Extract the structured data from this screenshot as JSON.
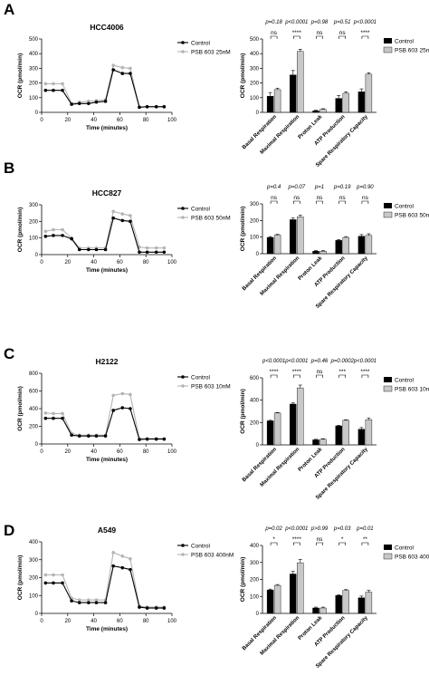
{
  "colors": {
    "control": "#000000",
    "treated": "#b4b4b4",
    "treated_bar": "#c8c8c8"
  },
  "chart_data": [
    {
      "panel": "A",
      "type": "line",
      "title": "HCC4006",
      "xlabel": "Time (minutes)",
      "ylabel": "OCR (pmol/min)",
      "xlim": [
        0,
        100
      ],
      "ylim": [
        0,
        500
      ],
      "xticks": [
        0,
        20,
        40,
        60,
        80,
        100
      ],
      "yticks": [
        0,
        100,
        200,
        300,
        400,
        500
      ],
      "x": [
        3,
        9,
        16,
        23,
        29,
        36,
        42,
        49,
        55,
        62,
        68,
        75,
        81,
        88,
        94
      ],
      "series": [
        {
          "name": "Control",
          "values": [
            150,
            150,
            150,
            55,
            60,
            60,
            70,
            75,
            290,
            265,
            265,
            35,
            38,
            38,
            38
          ]
        },
        {
          "name": "PSB 603 25nM",
          "values": [
            195,
            195,
            195,
            60,
            70,
            75,
            80,
            85,
            320,
            305,
            300,
            35,
            40,
            40,
            40
          ]
        }
      ]
    },
    {
      "panel": "A",
      "type": "bar",
      "ylabel": "OCR (pmol/min)",
      "ylim": [
        0,
        500
      ],
      "yticks": [
        0,
        100,
        200,
        300,
        400,
        500
      ],
      "categories": [
        "Basal Respiration",
        "Maximal Respiration",
        "Proton Leak",
        "ATP Production",
        "Spare Respiratory Capacity"
      ],
      "series": [
        {
          "name": "Control",
          "values": [
            110,
            255,
            10,
            95,
            140
          ]
        },
        {
          "name": "PSB 603 25nM",
          "values": [
            155,
            415,
            20,
            130,
            260
          ]
        }
      ],
      "errors": [
        [
          25,
          30,
          5,
          20,
          20
        ],
        [
          10,
          15,
          5,
          10,
          10
        ]
      ],
      "pvalues": [
        "p=0.18",
        "p<0.0001",
        "p=0.98",
        "p=0.51",
        "p<0.0001"
      ],
      "significance": [
        "ns",
        "****",
        "ns",
        "ns",
        "****"
      ]
    },
    {
      "panel": "B",
      "type": "line",
      "title": "HCC827",
      "xlabel": "Time (minutes)",
      "ylabel": "OCR (pmol/min)",
      "xlim": [
        0,
        100
      ],
      "ylim": [
        0,
        300
      ],
      "xticks": [
        0,
        20,
        40,
        60,
        80,
        100
      ],
      "yticks": [
        0,
        100,
        200,
        300
      ],
      "x": [
        3,
        9,
        16,
        23,
        29,
        36,
        42,
        49,
        55,
        62,
        68,
        75,
        81,
        88,
        94
      ],
      "series": [
        {
          "name": "Control",
          "values": [
            110,
            115,
            115,
            95,
            30,
            30,
            30,
            30,
            220,
            205,
            200,
            15,
            15,
            15,
            15
          ]
        },
        {
          "name": "PSB 603 50nM",
          "values": [
            140,
            150,
            150,
            100,
            40,
            40,
            40,
            40,
            260,
            245,
            235,
            45,
            40,
            40,
            40
          ]
        }
      ]
    },
    {
      "panel": "B",
      "type": "bar",
      "ylabel": "OCR (pmol/min)",
      "ylim": [
        0,
        300
      ],
      "yticks": [
        0,
        100,
        200,
        300
      ],
      "categories": [
        "Basal Respiration",
        "Maximal Respiration",
        "Proton Leak",
        "ATP Production",
        "Spare Respiratory Capacity"
      ],
      "series": [
        {
          "name": "Control",
          "values": [
            98,
            205,
            15,
            80,
            105
          ]
        },
        {
          "name": "PSB 603 50nM",
          "values": [
            112,
            222,
            15,
            98,
            110
          ]
        }
      ],
      "errors": [
        [
          5,
          10,
          5,
          5,
          10
        ],
        [
          5,
          10,
          5,
          5,
          10
        ]
      ],
      "pvalues": [
        "p=0.4",
        "p=0.07",
        "p=1",
        "p=0.19",
        "p=0.90"
      ],
      "significance": [
        "ns",
        "ns",
        "ns",
        "ns",
        "ns"
      ]
    },
    {
      "panel": "C",
      "type": "line",
      "title": "H2122",
      "xlabel": "Time (minutes)",
      "ylabel": "OCR (pmol/min)",
      "xlim": [
        0,
        100
      ],
      "ylim": [
        0,
        800
      ],
      "xticks": [
        0,
        20,
        40,
        60,
        80,
        100
      ],
      "yticks": [
        0,
        200,
        400,
        600,
        800
      ],
      "x": [
        3,
        9,
        16,
        23,
        29,
        36,
        42,
        49,
        55,
        62,
        68,
        75,
        81,
        88,
        94
      ],
      "series": [
        {
          "name": "Control",
          "values": [
            290,
            290,
            290,
            100,
            90,
            90,
            90,
            90,
            380,
            410,
            400,
            50,
            55,
            55,
            55
          ]
        },
        {
          "name": "PSB 603 10nM",
          "values": [
            350,
            345,
            345,
            120,
            100,
            100,
            100,
            100,
            550,
            570,
            560,
            60,
            60,
            60,
            60
          ]
        }
      ]
    },
    {
      "panel": "C",
      "type": "bar",
      "ylabel": "OCR (pmol/min)",
      "ylim": [
        0,
        600
      ],
      "yticks": [
        0,
        200,
        400,
        600
      ],
      "categories": [
        "Basal Respiration",
        "Maximal Respiration",
        "Proton Leak",
        "ATP Production",
        "Spare Respiratory Capacity"
      ],
      "series": [
        {
          "name": "Control",
          "values": [
            215,
            365,
            45,
            170,
            140
          ]
        },
        {
          "name": "PSB 603 10nM",
          "values": [
            285,
            510,
            50,
            220,
            225
          ]
        }
      ],
      "errors": [
        [
          5,
          10,
          5,
          5,
          15
        ],
        [
          5,
          25,
          5,
          5,
          15
        ]
      ],
      "pvalues": [
        "p<0.0001",
        "p<0.0001",
        "p=0.46",
        "p=0.0002",
        "p<0.0001"
      ],
      "significance": [
        "****",
        "****",
        "ns",
        "***",
        "****"
      ]
    },
    {
      "panel": "D",
      "type": "line",
      "title": "A549",
      "xlabel": "Time (minutes)",
      "ylabel": "OCR (pmol/min)",
      "xlim": [
        0,
        100
      ],
      "ylim": [
        0,
        400
      ],
      "xticks": [
        0,
        20,
        40,
        60,
        80,
        100
      ],
      "yticks": [
        0,
        100,
        200,
        300,
        400
      ],
      "x": [
        3,
        9,
        16,
        23,
        29,
        36,
        42,
        49,
        55,
        62,
        68,
        75,
        81,
        88,
        94
      ],
      "series": [
        {
          "name": "Control",
          "values": [
            170,
            170,
            170,
            70,
            60,
            60,
            60,
            60,
            265,
            255,
            245,
            35,
            30,
            30,
            30
          ]
        },
        {
          "name": "PSB 603 400nM",
          "values": [
            215,
            215,
            215,
            85,
            75,
            75,
            75,
            75,
            340,
            320,
            305,
            40,
            35,
            35,
            35
          ]
        }
      ]
    },
    {
      "panel": "D",
      "type": "bar",
      "ylabel": "OCR (pmol/min)",
      "ylim": [
        0,
        400
      ],
      "yticks": [
        0,
        100,
        200,
        300,
        400
      ],
      "categories": [
        "Basal Respiration",
        "Maximal Respiration",
        "Proton Leak",
        "ATP Production",
        "Spare Respiratory Capacity"
      ],
      "series": [
        {
          "name": "Control",
          "values": [
            138,
            232,
            32,
            105,
            92
          ]
        },
        {
          "name": "PSB 603 400nM",
          "values": [
            165,
            298,
            32,
            135,
            125
          ]
        }
      ],
      "errors": [
        [
          5,
          15,
          5,
          5,
          10
        ],
        [
          5,
          20,
          5,
          5,
          10
        ]
      ],
      "pvalues": [
        "p=0.02",
        "p<0.0001",
        "p>0.99",
        "p=0.03",
        "p=0.01"
      ],
      "significance": [
        "*",
        "****",
        "ns",
        "*",
        "**"
      ]
    }
  ]
}
